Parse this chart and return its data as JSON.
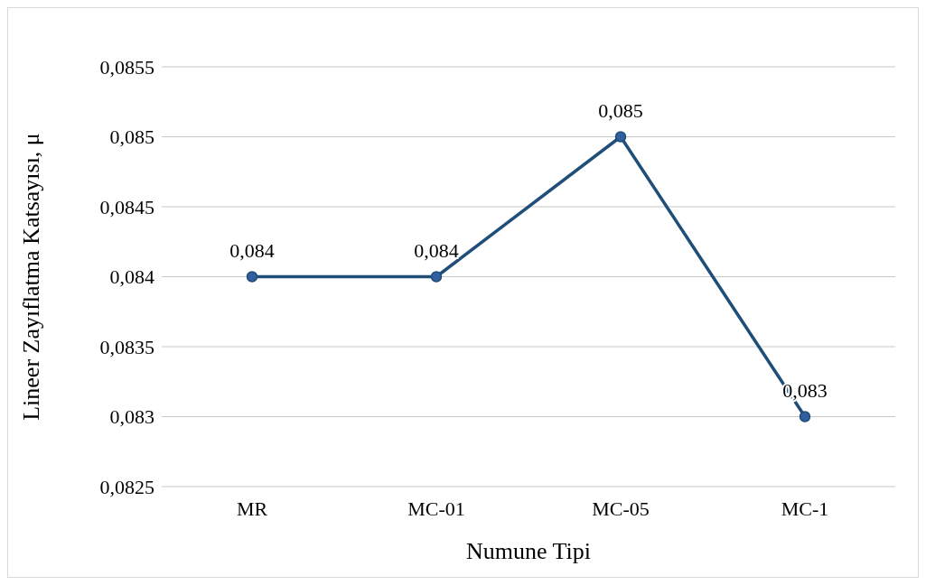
{
  "chart_data": {
    "type": "line",
    "xlabel": "Numune Tipi",
    "ylabel": "Lineer Zayıflatma Katsayısı, μ",
    "categories": [
      "MR",
      "MC-01",
      "MC-05",
      "MC-1"
    ],
    "series": [
      {
        "color": "#1f4e79",
        "values": [
          0.084,
          0.084,
          0.085,
          0.083
        ],
        "value_labels": [
          "0,084",
          "0,084",
          "0,085",
          "0,083"
        ]
      }
    ],
    "ylim": [
      0.0825,
      0.0855
    ],
    "yticks": [
      {
        "value": 0.0825,
        "label": "0,0825"
      },
      {
        "value": 0.083,
        "label": "0,083"
      },
      {
        "value": 0.0835,
        "label": "0,0835"
      },
      {
        "value": 0.084,
        "label": "0,084"
      },
      {
        "value": 0.0845,
        "label": "0,0845"
      },
      {
        "value": 0.085,
        "label": "0,085"
      },
      {
        "value": 0.0855,
        "label": "0,0855"
      }
    ],
    "grid": "y",
    "marker": "circle",
    "line_style": "solid"
  }
}
